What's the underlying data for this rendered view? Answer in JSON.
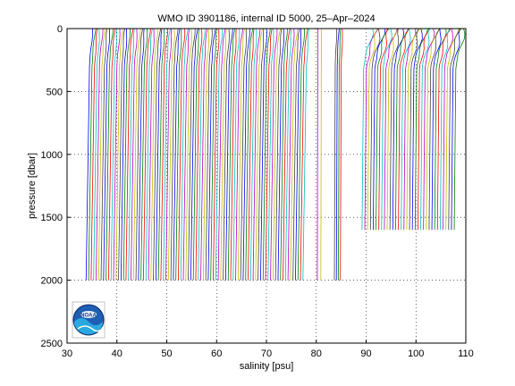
{
  "chart_data": {
    "type": "line",
    "title": "WMO ID 3901186, internal ID 5000, 25–Apr–2024",
    "xlabel": "salinity [psu]",
    "ylabel": "pressure [dbar]",
    "xlim": [
      30,
      110
    ],
    "ylim": [
      0,
      2500
    ],
    "y_reversed": true,
    "x_ticks": [
      30,
      40,
      50,
      60,
      70,
      80,
      90,
      100,
      110
    ],
    "y_ticks": [
      0,
      500,
      1000,
      1500,
      2000,
      2500
    ],
    "grid": "dotted",
    "profile_colors": [
      "#0000ff",
      "#008000",
      "#ff0000",
      "#00bfbf",
      "#bf00bf",
      "#bfbf00",
      "#404040"
    ],
    "profile_groups": [
      {
        "name": "",
        "x_start": 34.5,
        "x_end": 78.0,
        "count": 88,
        "top_offset": 0.6,
        "deep_drift": 0.8,
        "max_pressure": 2000
      },
      {
        "name": "",
        "x_start": 80.3,
        "x_end": 81.0,
        "count": 2,
        "top_offset": 0.0,
        "deep_drift": 0.1,
        "max_pressure": 2000
      },
      {
        "name": "",
        "x_start": 83.8,
        "x_end": 85.0,
        "count": 4,
        "top_offset": 0.3,
        "deep_drift": 0.2,
        "max_pressure": 2000
      },
      {
        "name": "",
        "x_start": 89.5,
        "x_end": 108.0,
        "count": 34,
        "top_offset": 1.8,
        "deep_drift": 0.4,
        "max_pressure": 1600
      }
    ],
    "logo": "noaa"
  },
  "logo": {
    "text": "NOAA"
  }
}
